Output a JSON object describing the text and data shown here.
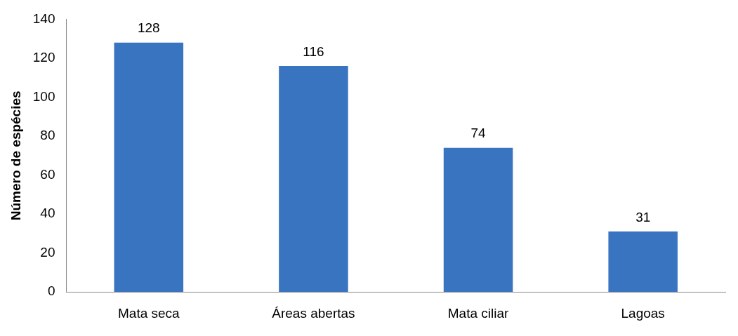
{
  "chart_data": {
    "type": "bar",
    "ylabel": "Número de espécies",
    "categories": [
      "Mata seca",
      "Áreas abertas",
      "Mata ciliar",
      "Lagoas"
    ],
    "values": [
      128,
      116,
      74,
      31
    ],
    "color": "#3874c0",
    "ylim": [
      0,
      140
    ],
    "yticks": [
      0,
      20,
      40,
      60,
      80,
      100,
      120,
      140
    ],
    "grid": false,
    "legend": false,
    "data_labels": true
  }
}
